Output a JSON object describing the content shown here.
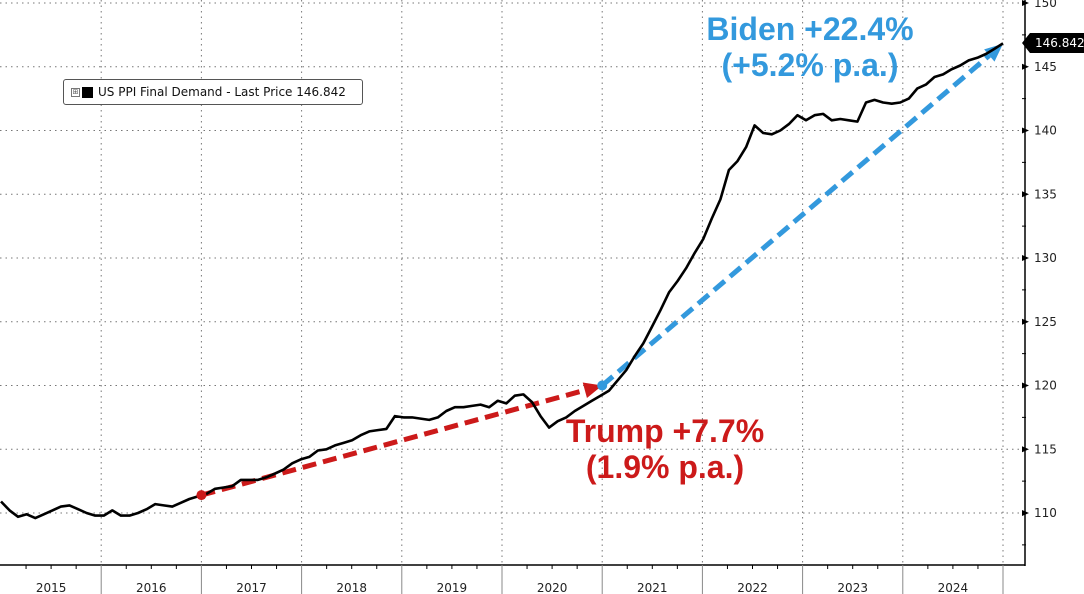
{
  "chart_data": {
    "type": "line",
    "title": "",
    "xlabel": "",
    "ylabel": "",
    "ylim": [
      105.3,
      150.2
    ],
    "xlim": [
      "2015-01",
      "2024-12"
    ],
    "y_ticks": [
      110,
      115,
      120,
      125,
      130,
      135,
      140,
      145,
      150
    ],
    "y_tick_labels": [
      "110",
      "115",
      "120",
      "125",
      "130",
      "135",
      "140",
      "145",
      "150"
    ],
    "x_categories": [
      "2015",
      "2016",
      "2017",
      "2018",
      "2019",
      "2020",
      "2021",
      "2022",
      "2023",
      "2024"
    ],
    "grid": true,
    "legend_position": "top-left",
    "legend": {
      "label": "US PPI Final Demand - Last Price 146.842",
      "expand_glyph": "⊞"
    },
    "last_price_tag": "146.842",
    "series": [
      {
        "name": "US PPI Final Demand",
        "color": "#000000",
        "start": "2015-01",
        "frequency": "monthly",
        "values": [
          110.9,
          110.2,
          109.7,
          109.9,
          109.6,
          109.9,
          110.2,
          110.5,
          110.6,
          110.3,
          110.0,
          109.8,
          109.8,
          110.2,
          109.8,
          109.8,
          110.0,
          110.3,
          110.7,
          110.6,
          110.5,
          110.8,
          111.1,
          111.3,
          111.5,
          111.9,
          112.0,
          112.1,
          112.6,
          112.6,
          112.6,
          112.8,
          113.1,
          113.4,
          113.9,
          114.2,
          114.4,
          114.9,
          115.0,
          115.3,
          115.5,
          115.7,
          116.1,
          116.4,
          116.5,
          116.6,
          117.6,
          117.5,
          117.5,
          117.4,
          117.3,
          117.5,
          118.0,
          118.3,
          118.3,
          118.4,
          118.5,
          118.3,
          118.8,
          118.6,
          119.2,
          119.3,
          118.7,
          117.6,
          116.7,
          117.2,
          117.5,
          118.0,
          118.4,
          118.8,
          119.2,
          119.6,
          120.4,
          121.2,
          122.3,
          123.3,
          124.6,
          125.9,
          127.3,
          128.2,
          129.2,
          130.4,
          131.5,
          133.1,
          134.6,
          136.9,
          137.6,
          138.7,
          140.4,
          139.8,
          139.7,
          140.0,
          140.5,
          141.2,
          140.8,
          141.2,
          141.3,
          140.8,
          140.9,
          140.8,
          140.7,
          142.2,
          142.4,
          142.2,
          142.1,
          142.2,
          142.5,
          143.3,
          143.6,
          144.2,
          144.4,
          144.8,
          145.1,
          145.5,
          145.7,
          146.0,
          146.4,
          146.842
        ]
      }
    ],
    "annotations": [
      {
        "name": "trump",
        "text_line1": "Trump +7.7%",
        "text_line2": "(1.9% p.a.)",
        "color": "#cc1a1a",
        "arrow_from": {
          "x": "2017-01",
          "y": 111.4
        },
        "arrow_to": {
          "x": "2020-12",
          "y": 120.0
        },
        "change_pct": 7.7,
        "annual_pct": 1.9
      },
      {
        "name": "biden",
        "text_line1": "Biden +22.4%",
        "text_line2": "(+5.2% p.a.)",
        "color": "#3399dd",
        "arrow_from": {
          "x": "2021-01",
          "y": 120.0
        },
        "arrow_to": {
          "x": "2024-12",
          "y": 146.8
        },
        "change_pct": 22.4,
        "annual_pct": 5.2
      }
    ]
  }
}
